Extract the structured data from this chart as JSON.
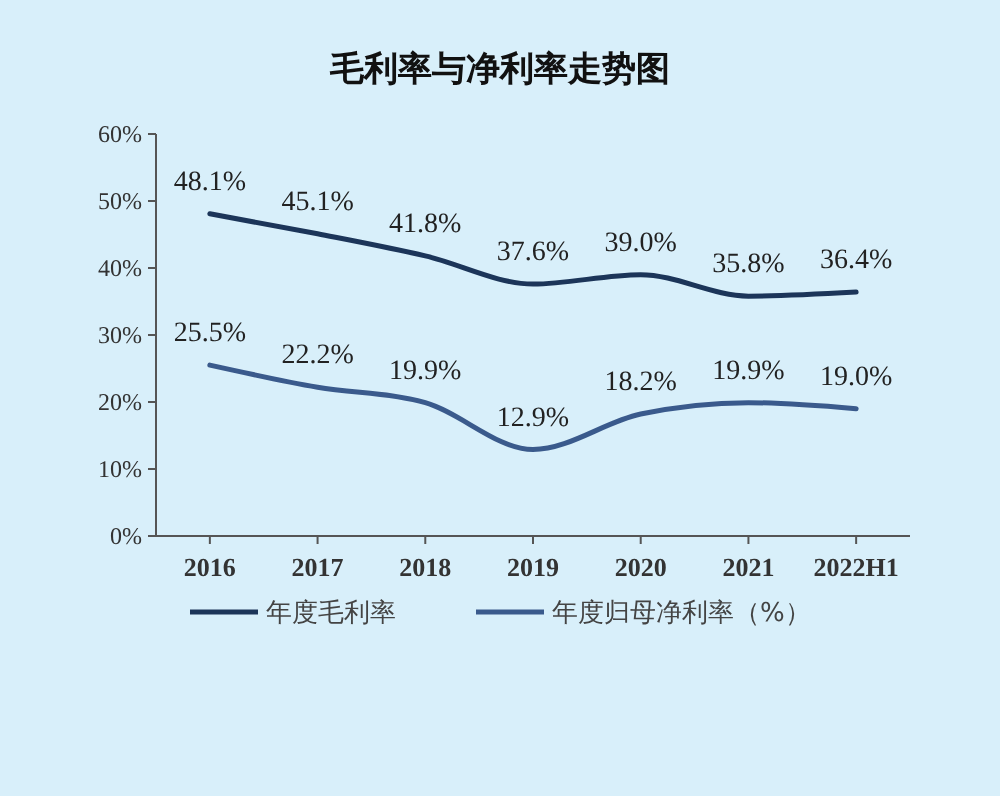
{
  "chart_data": {
    "type": "line",
    "title": "毛利率与净利率走势图",
    "categories": [
      "2016",
      "2017",
      "2018",
      "2019",
      "2020",
      "2021",
      "2022H1"
    ],
    "series": [
      {
        "name": "年度毛利率",
        "color": "#1c3559",
        "values": [
          48.1,
          45.1,
          41.8,
          37.6,
          39.0,
          35.8,
          36.4
        ],
        "value_labels": [
          "48.1%",
          "45.1%",
          "41.8%",
          "37.6%",
          "39.0%",
          "35.8%",
          "36.4%"
        ]
      },
      {
        "name": "年度归母净利率（%）",
        "color": "#3a5a8c",
        "values": [
          25.5,
          22.2,
          19.9,
          12.9,
          18.2,
          19.9,
          19.0
        ],
        "value_labels": [
          "25.5%",
          "22.2%",
          "19.9%",
          "12.9%",
          "18.2%",
          "19.9%",
          "19.0%"
        ]
      }
    ],
    "ylim": [
      0,
      60
    ],
    "yticks": [
      {
        "value": 0,
        "label": "0%"
      },
      {
        "value": 10,
        "label": "10%"
      },
      {
        "value": 20,
        "label": "20%"
      },
      {
        "value": 30,
        "label": "30%"
      },
      {
        "value": 40,
        "label": "40%"
      },
      {
        "value": 50,
        "label": "50%"
      },
      {
        "value": 60,
        "label": "60%"
      }
    ],
    "grid": false,
    "legend": "bottom",
    "marker": "none",
    "line_style": "solid"
  }
}
